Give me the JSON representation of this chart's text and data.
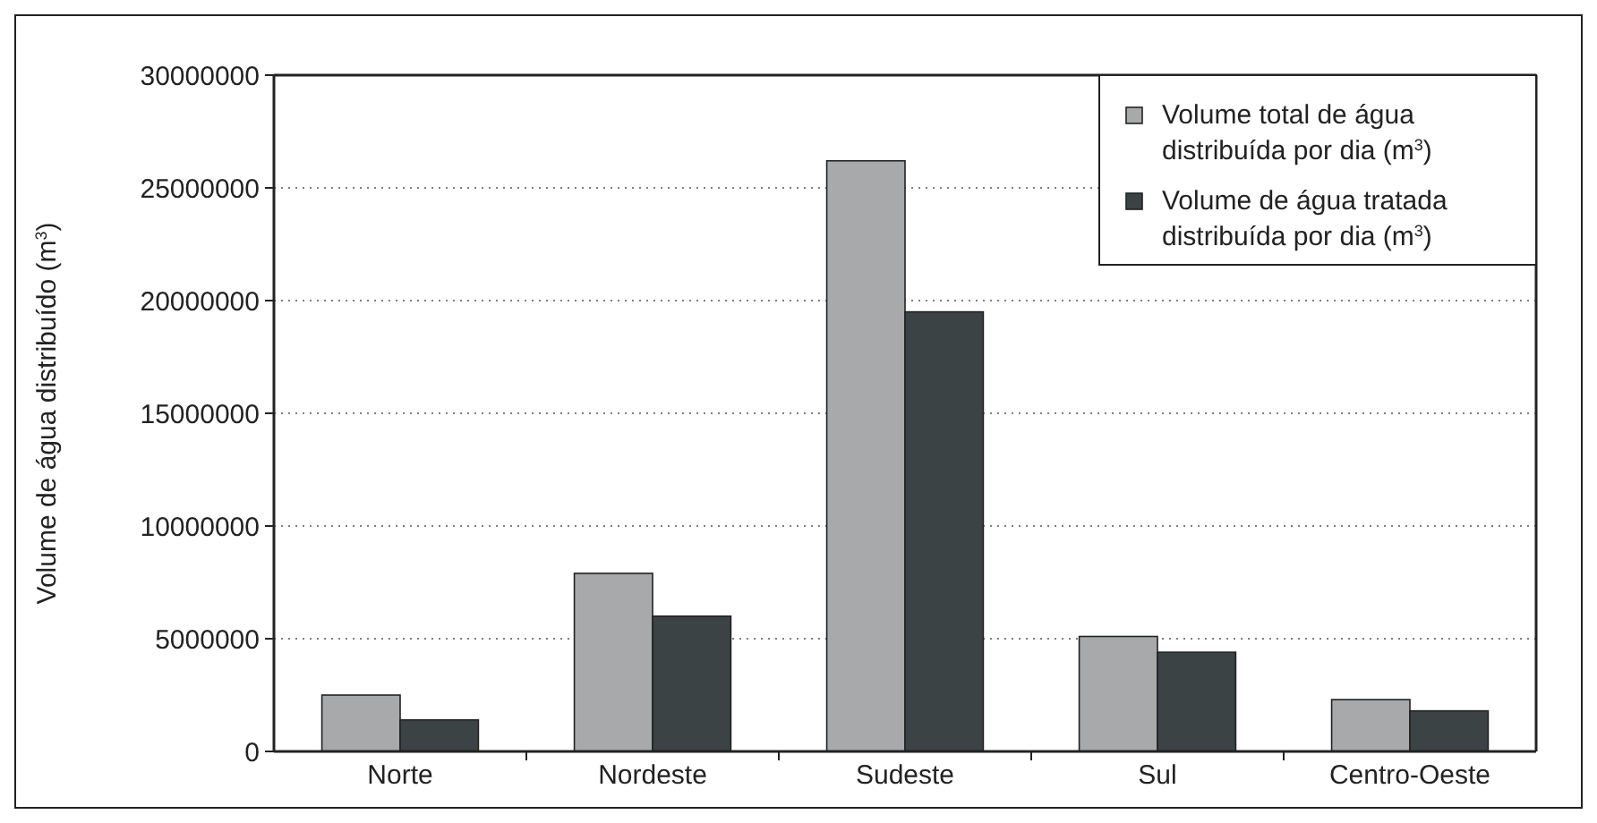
{
  "chart_data": {
    "type": "bar",
    "ylabel": "Volume de água distribuído (m$^{3}$)",
    "categories": [
      "Norte",
      "Nordeste",
      "Sudeste",
      "Sul",
      "Centro-Oeste"
    ],
    "series": [
      {
        "name": "Volume total de água distribuída por dia (m$^{3}$)",
        "color": "#a7a9ab",
        "values": [
          2500000,
          7900000,
          26200000,
          5100000,
          2300000
        ]
      },
      {
        "name": "Volume de água tratada distribuída por dia (m$^{3}$)",
        "color": "#3b4345",
        "values": [
          1400000,
          6000000,
          19500000,
          4400000,
          1800000
        ]
      }
    ],
    "ylim": [
      0,
      30000000
    ],
    "yticks": [
      0,
      5000000,
      10000000,
      15000000,
      20000000,
      25000000,
      30000000
    ],
    "grid": "y",
    "legend": "top right"
  }
}
